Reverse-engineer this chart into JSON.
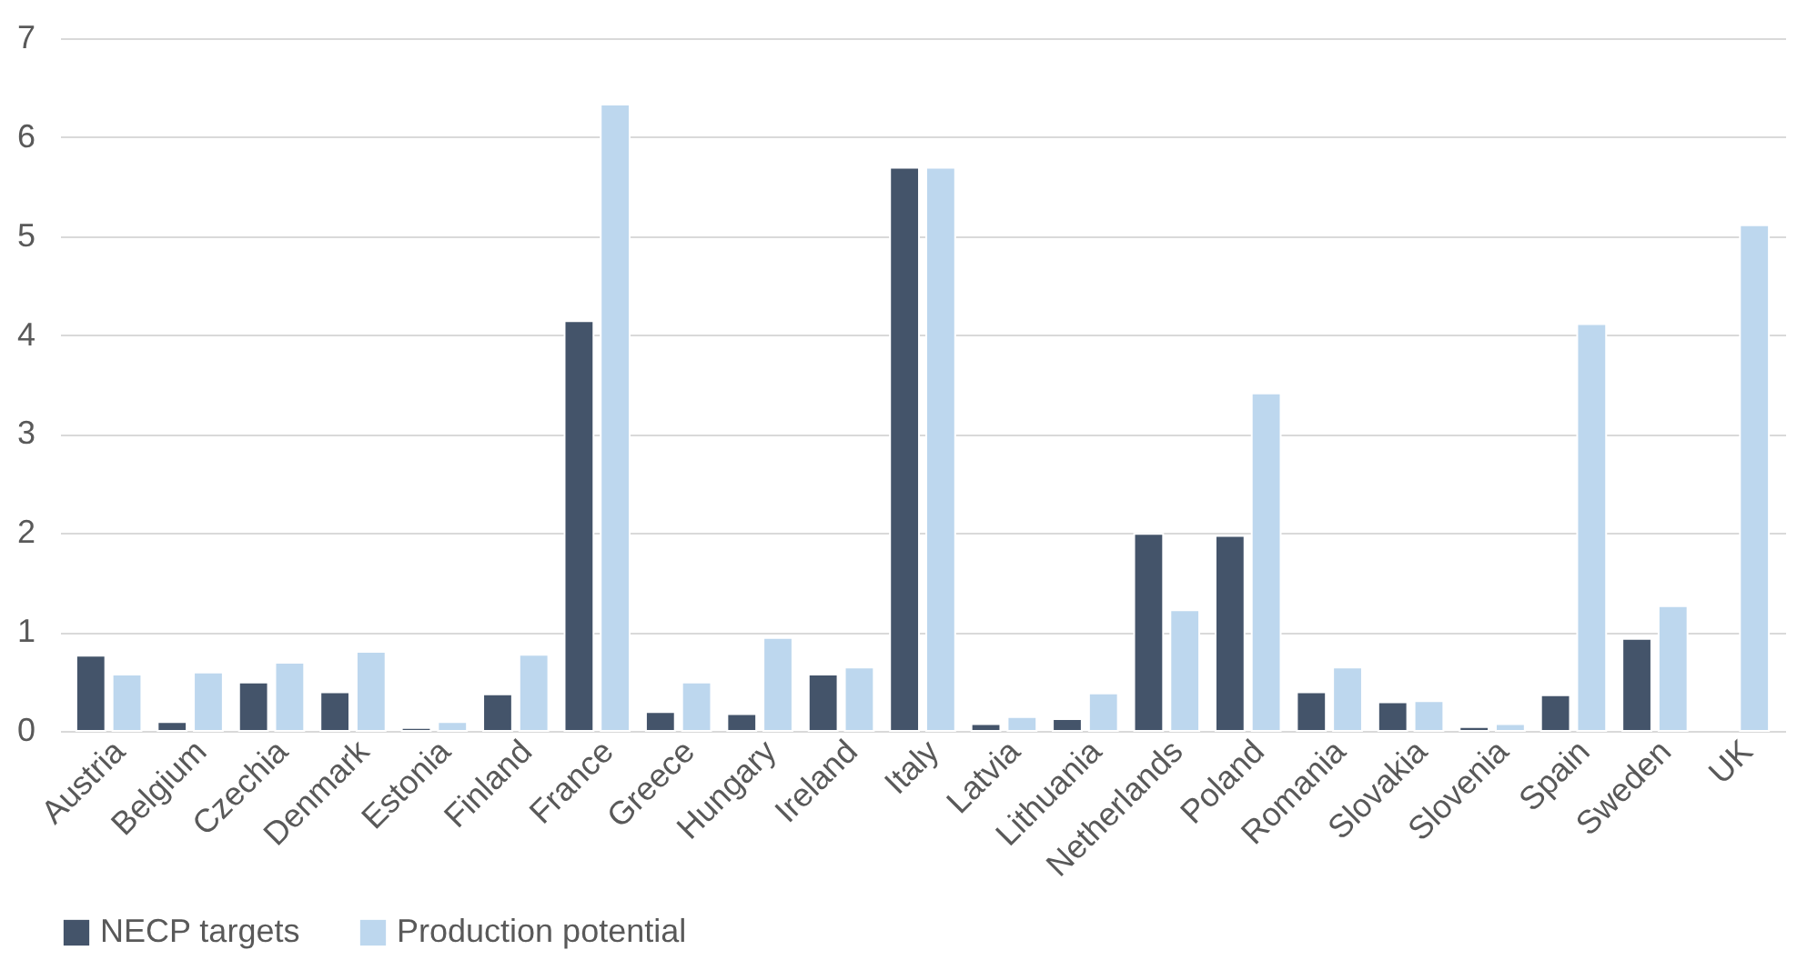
{
  "chart_data": {
    "type": "bar",
    "categories": [
      "Austria",
      "Belgium",
      "Czechia",
      "Denmark",
      "Estonia",
      "Finland",
      "France",
      "Greece",
      "Hungary",
      "Ireland",
      "Italy",
      "Latvia",
      "Lithuania",
      "Netherlands",
      "Poland",
      "Romania",
      "Slovakia",
      "Slovenia",
      "Spain",
      "Sweden",
      "UK"
    ],
    "series": [
      {
        "name": "NECP targets",
        "color": "#44546a",
        "values": [
          0.76,
          0.09,
          0.49,
          0.39,
          0.03,
          0.37,
          4.14,
          0.19,
          0.17,
          0.57,
          5.69,
          0.07,
          0.12,
          1.99,
          1.97,
          0.39,
          0.29,
          0.04,
          0.36,
          0.93,
          null
        ]
      },
      {
        "name": "Production potential",
        "color": "#bdd7ee",
        "values": [
          0.57,
          0.59,
          0.69,
          0.8,
          0.09,
          0.77,
          6.33,
          0.49,
          0.94,
          0.64,
          5.69,
          0.14,
          0.38,
          1.22,
          3.41,
          0.64,
          0.3,
          0.07,
          4.11,
          1.26,
          5.11
        ]
      }
    ],
    "ylim": [
      0,
      7
    ],
    "yticks": [
      0,
      1,
      2,
      3,
      4,
      5,
      6,
      7
    ],
    "grid": "y",
    "legend": "bottom"
  }
}
